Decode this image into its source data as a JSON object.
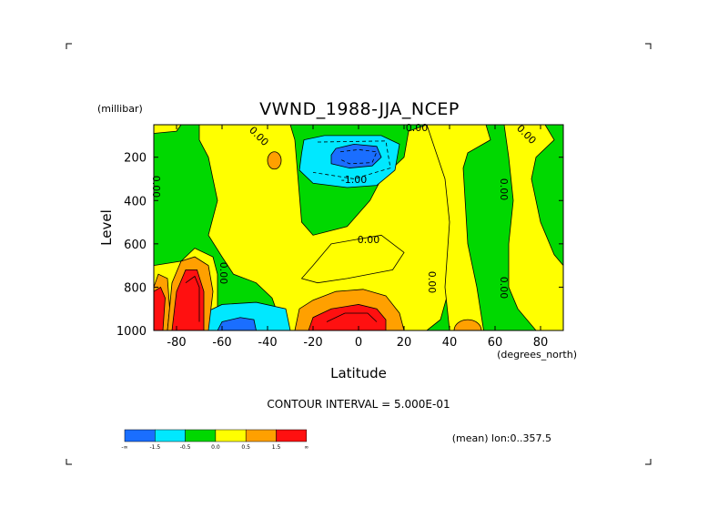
{
  "chart_data": {
    "type": "heatmap",
    "subtype": "filled-contour",
    "title": "VWND_1988-JJA_NCEP",
    "ylabel": "Level",
    "yunits": "(millibar)",
    "xlabel": "Latitude",
    "xunits": "(degrees_north)",
    "xlim": [
      -90,
      90
    ],
    "ylim": [
      1000,
      50
    ],
    "y_inverted": true,
    "xticks": [
      "-80",
      "-60",
      "-40",
      "-20",
      "0",
      "20",
      "40",
      "60",
      "80"
    ],
    "yticks": [
      "200",
      "400",
      "600",
      "800",
      "1000"
    ],
    "contour_interval": "CONTOUR INTERVAL = 5.000E-01",
    "footnote": "(mean) lon:0..357.5",
    "contour_labels": [
      "0.00",
      "0.00",
      "0.00",
      "0.00",
      "-1.00",
      "0.00",
      "0.00",
      "0.00",
      "0.00",
      "0.00"
    ],
    "legend": {
      "labels": [
        "-∞",
        "-1.5",
        "-0.5",
        "0.0",
        "0.5",
        "1.5",
        "∞"
      ],
      "colors": [
        "#1a6eff",
        "#00e8ff",
        "#00d800",
        "#ffff00",
        "#ffa000",
        "#ff1010"
      ]
    },
    "regions": [
      {
        "level": "neg_strong",
        "x0": -10,
        "x1": 10,
        "y0": 160,
        "y1": 250,
        "color": "#1a6eff"
      },
      {
        "level": "neg_mid",
        "x0": -24,
        "x1": 18,
        "y0": 110,
        "y1": 320,
        "color": "#00e8ff"
      },
      {
        "level": "neg_strong",
        "x0": -62,
        "x1": -45,
        "y0": 940,
        "y1": 1000,
        "color": "#1a6eff"
      },
      {
        "level": "neg_mid",
        "x0": -70,
        "x1": -30,
        "y0": 880,
        "y1": 1000,
        "color": "#00e8ff"
      },
      {
        "level": "pos_strong",
        "x0": -22,
        "x1": 10,
        "y0": 930,
        "y1": 1000,
        "color": "#ff1010"
      },
      {
        "level": "pos_mid",
        "x0": -28,
        "x1": 18,
        "y0": 850,
        "y1": 1000,
        "color": "#ffa000"
      },
      {
        "level": "pos_strong",
        "x0": -90,
        "x1": -85,
        "y0": 800,
        "y1": 1000,
        "color": "#ff1010"
      },
      {
        "level": "pos_strong",
        "x0": -82,
        "x1": -68,
        "y0": 720,
        "y1": 1000,
        "color": "#ff1010"
      }
    ]
  }
}
